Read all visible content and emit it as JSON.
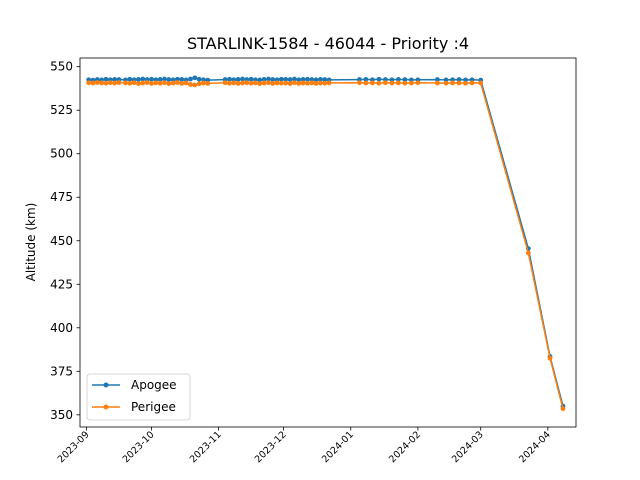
{
  "chart_data": {
    "type": "line",
    "title": "STARLINK-1584 - 46044 - Priority :4",
    "xlabel": "",
    "ylabel": "Altitude (km)",
    "xlim": [
      "2023-08-29",
      "2024-04-14"
    ],
    "ylim": [
      343,
      555
    ],
    "x_ticks": [
      "2023-09",
      "2023-10",
      "2023-11",
      "2023-12",
      "2024-01",
      "2024-02",
      "2024-03",
      "2024-04"
    ],
    "y_ticks": [
      350,
      375,
      400,
      425,
      450,
      475,
      500,
      525,
      550
    ],
    "grid": false,
    "legend_position": "lower-left",
    "colors": {
      "apogee": "#1f77b4",
      "perigee": "#ff7f0e"
    },
    "series": [
      {
        "name": "Apogee",
        "x": [
          "2023-09-02",
          "2023-09-04",
          "2023-09-06",
          "2023-09-08",
          "2023-09-10",
          "2023-09-12",
          "2023-09-14",
          "2023-09-16",
          "2023-09-19",
          "2023-09-21",
          "2023-09-23",
          "2023-09-25",
          "2023-09-27",
          "2023-09-29",
          "2023-10-01",
          "2023-10-03",
          "2023-10-05",
          "2023-10-07",
          "2023-10-09",
          "2023-10-11",
          "2023-10-13",
          "2023-10-15",
          "2023-10-17",
          "2023-10-19",
          "2023-10-21",
          "2023-10-23",
          "2023-10-25",
          "2023-10-27",
          "2023-11-04",
          "2023-11-06",
          "2023-11-08",
          "2023-11-10",
          "2023-11-12",
          "2023-11-14",
          "2023-11-16",
          "2023-11-18",
          "2023-11-20",
          "2023-11-22",
          "2023-11-24",
          "2023-11-26",
          "2023-11-28",
          "2023-11-30",
          "2023-12-02",
          "2023-12-04",
          "2023-12-06",
          "2023-12-08",
          "2023-12-10",
          "2023-12-12",
          "2023-12-14",
          "2023-12-16",
          "2023-12-18",
          "2023-12-20",
          "2023-12-22",
          "2024-01-05",
          "2024-01-08",
          "2024-01-11",
          "2024-01-14",
          "2024-01-17",
          "2024-01-20",
          "2024-01-23",
          "2024-01-26",
          "2024-01-29",
          "2024-02-01",
          "2024-02-10",
          "2024-02-14",
          "2024-02-17",
          "2024-02-20",
          "2024-02-23",
          "2024-02-26",
          "2024-03-01",
          "2024-03-23",
          "2024-04-02",
          "2024-04-08"
        ],
        "values": [
          542.5,
          542.3,
          542.6,
          542.4,
          542.8,
          542.5,
          542.7,
          542.6,
          542.4,
          542.8,
          542.5,
          542.7,
          542.9,
          542.6,
          542.8,
          542.5,
          542.7,
          542.9,
          542.6,
          542.5,
          542.8,
          542.7,
          542.4,
          542.9,
          543.6,
          542.8,
          542.5,
          542.3,
          542.6,
          542.8,
          542.5,
          542.7,
          542.9,
          542.6,
          542.8,
          542.5,
          542.4,
          542.7,
          542.9,
          542.6,
          542.5,
          542.8,
          542.7,
          542.6,
          542.9,
          542.5,
          542.7,
          542.8,
          542.6,
          542.5,
          542.7,
          542.6,
          542.4,
          542.6,
          542.7,
          542.5,
          542.8,
          542.6,
          542.5,
          542.7,
          542.6,
          542.4,
          542.5,
          542.6,
          542.4,
          542.5,
          542.6,
          542.4,
          542.5,
          542.3,
          445.5,
          383.5,
          355.0
        ]
      },
      {
        "name": "Perigee",
        "x": [
          "2023-09-02",
          "2023-09-04",
          "2023-09-06",
          "2023-09-08",
          "2023-09-10",
          "2023-09-12",
          "2023-09-14",
          "2023-09-16",
          "2023-09-19",
          "2023-09-21",
          "2023-09-23",
          "2023-09-25",
          "2023-09-27",
          "2023-09-29",
          "2023-10-01",
          "2023-10-03",
          "2023-10-05",
          "2023-10-07",
          "2023-10-09",
          "2023-10-11",
          "2023-10-13",
          "2023-10-15",
          "2023-10-17",
          "2023-10-19",
          "2023-10-21",
          "2023-10-23",
          "2023-10-25",
          "2023-10-27",
          "2023-11-04",
          "2023-11-06",
          "2023-11-08",
          "2023-11-10",
          "2023-11-12",
          "2023-11-14",
          "2023-11-16",
          "2023-11-18",
          "2023-11-20",
          "2023-11-22",
          "2023-11-24",
          "2023-11-26",
          "2023-11-28",
          "2023-11-30",
          "2023-12-02",
          "2023-12-04",
          "2023-12-06",
          "2023-12-08",
          "2023-12-10",
          "2023-12-12",
          "2023-12-14",
          "2023-12-16",
          "2023-12-18",
          "2023-12-20",
          "2023-12-22",
          "2024-01-05",
          "2024-01-08",
          "2024-01-11",
          "2024-01-14",
          "2024-01-17",
          "2024-01-20",
          "2024-01-23",
          "2024-01-26",
          "2024-01-29",
          "2024-02-01",
          "2024-02-10",
          "2024-02-14",
          "2024-02-17",
          "2024-02-20",
          "2024-02-23",
          "2024-02-26",
          "2024-03-01",
          "2024-03-23",
          "2024-04-02",
          "2024-04-08"
        ],
        "values": [
          540.8,
          540.6,
          540.9,
          540.7,
          540.5,
          540.8,
          540.6,
          540.9,
          540.7,
          540.5,
          540.8,
          540.3,
          540.6,
          540.9,
          540.4,
          540.7,
          540.5,
          540.8,
          540.3,
          540.6,
          540.9,
          540.4,
          540.7,
          539.8,
          539.5,
          540.2,
          540.6,
          540.4,
          540.8,
          540.5,
          540.7,
          540.4,
          540.6,
          540.8,
          540.5,
          540.7,
          540.3,
          540.6,
          540.8,
          540.4,
          540.7,
          540.5,
          540.6,
          540.3,
          540.8,
          540.4,
          540.6,
          540.5,
          540.7,
          540.4,
          540.6,
          540.5,
          540.7,
          540.8,
          540.6,
          540.7,
          540.5,
          540.8,
          540.6,
          540.7,
          540.5,
          540.6,
          540.8,
          540.6,
          540.5,
          540.7,
          540.6,
          540.5,
          540.7,
          540.6,
          443.0,
          382.5,
          353.5
        ]
      }
    ]
  }
}
